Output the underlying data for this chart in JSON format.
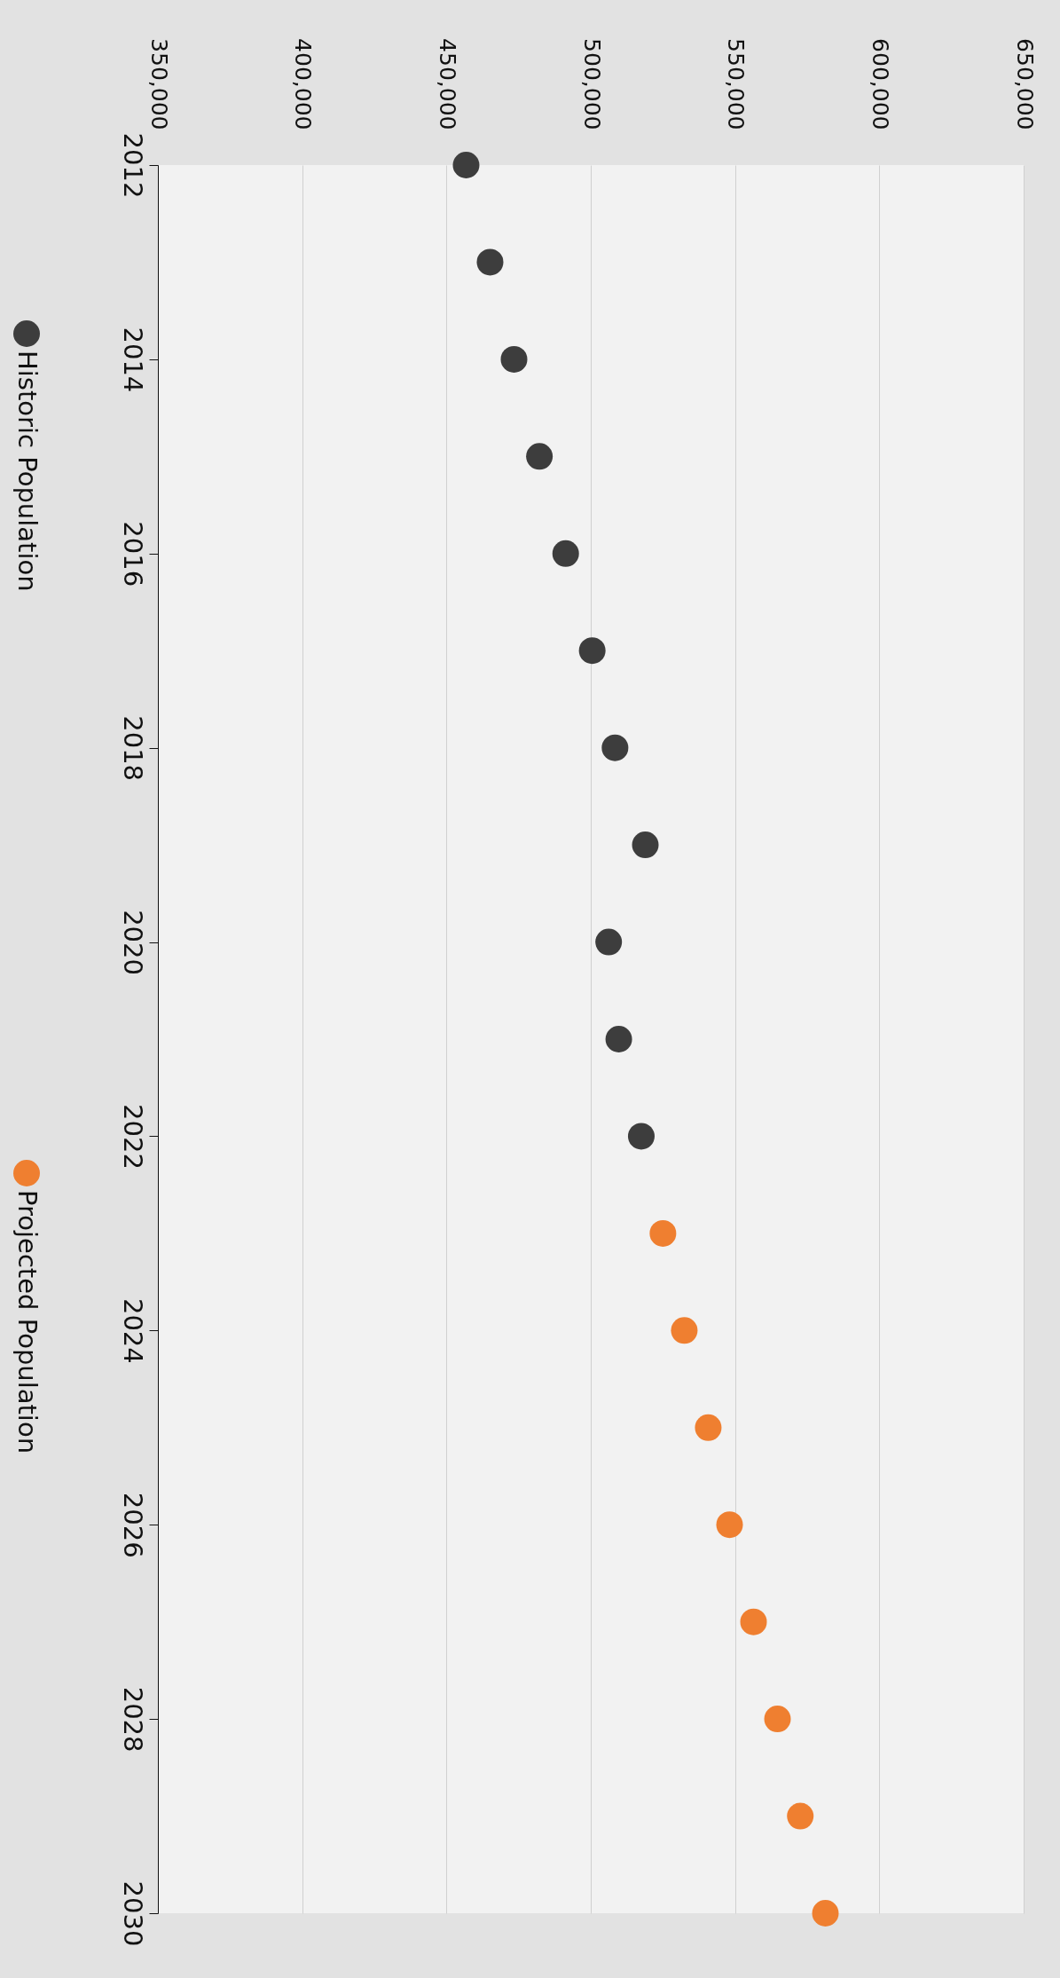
{
  "chart_data": {
    "type": "scatter",
    "series": [
      {
        "name": "Historic Population",
        "color": "#3d3d3d",
        "x": [
          456500,
          464800,
          473100,
          481900,
          491000,
          500200,
          508100,
          518600,
          505900,
          509400,
          517200
        ],
        "values": [
          2012,
          2013,
          2014,
          2015,
          2016,
          2017,
          2018,
          2019,
          2020,
          2021,
          2022
        ]
      },
      {
        "name": "Projected Population",
        "color": "#ef7f30",
        "x": [
          524700,
          532100,
          540400,
          547800,
          556100,
          564400,
          572300,
          581000
        ],
        "values": [
          2023,
          2024,
          2025,
          2026,
          2027,
          2028,
          2029,
          2030
        ]
      }
    ],
    "ylim": [
      2030,
      2012
    ],
    "yticks": [
      2012,
      2014,
      2016,
      2018,
      2020,
      2022,
      2024,
      2026,
      2028,
      2030
    ],
    "xlim": [
      350000,
      650000
    ],
    "xticks": [
      {
        "value": 350000,
        "label": "350,000"
      },
      {
        "value": 400000,
        "label": "400,000"
      },
      {
        "value": 450000,
        "label": "450,000"
      },
      {
        "value": 500000,
        "label": "500,000"
      },
      {
        "value": 550000,
        "label": "550,000"
      },
      {
        "value": 600000,
        "label": "600,000"
      },
      {
        "value": 650000,
        "label": "650,000"
      }
    ],
    "grid": "x",
    "legend": "left",
    "marker": "circle"
  }
}
